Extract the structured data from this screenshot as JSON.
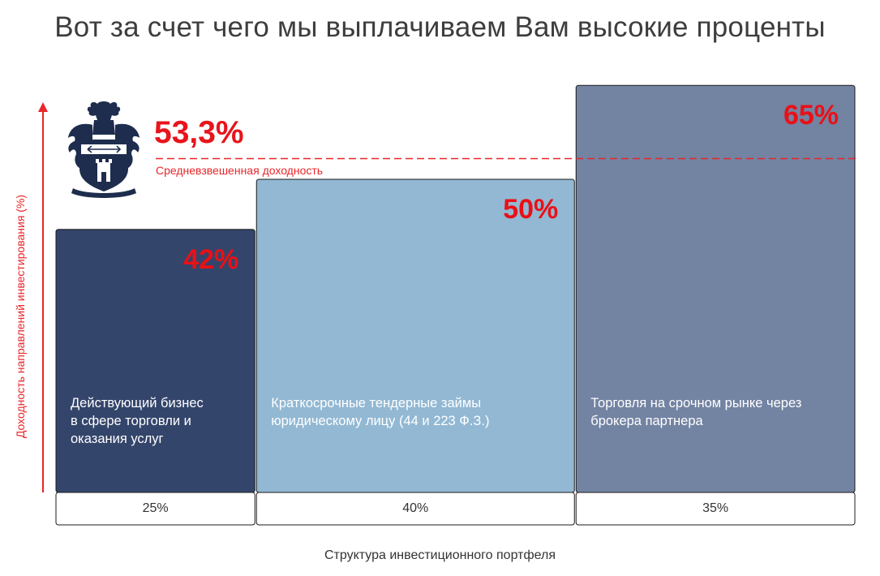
{
  "page": {
    "title": "Вот за счет чего мы выплачиваем Вам высокие проценты"
  },
  "colors": {
    "bar_1": "#34456b",
    "bar_2": "#92b8d3",
    "bar_3": "#7383a2",
    "accent_red": "#e8262b",
    "logo": "#1e2d4d"
  },
  "logo": {
    "icon": "coat-of-arms-icon"
  },
  "chart_data": {
    "type": "bar",
    "variable_width": true,
    "title": "",
    "xlabel": "Структура инвестиционного портфеля",
    "ylabel": "Доходность направлений инвестирования (%)",
    "ylim": [
      0,
      70
    ],
    "categories": [
      "Действующий бизнес в сфере торговли и оказания услуг",
      "Краткосрочные тендерные займы юридическому лицу (44 и 223 Ф.З.)",
      "Торговля на срочном рынке через брокера партнера"
    ],
    "category_lines": [
      [
        "Действующий бизнес",
        "в сфере торговли и",
        "оказания услуг"
      ],
      [
        "Краткосрочные тендерные займы",
        "юридическому лицу (44 и 223 Ф.З.)"
      ],
      [
        "Торговля на срочном рынке через",
        "брокера партнера"
      ]
    ],
    "values": [
      42,
      50,
      65
    ],
    "value_labels": [
      "42%",
      "50%",
      "65%"
    ],
    "weights": [
      25,
      40,
      35
    ],
    "weight_labels": [
      "25%",
      "40%",
      "35%"
    ],
    "reference_line": {
      "value": 53.3,
      "value_label": "53,3%",
      "label": "Средневзвешенная доходность",
      "style": "dashed"
    },
    "grid": false,
    "legend": "none"
  }
}
